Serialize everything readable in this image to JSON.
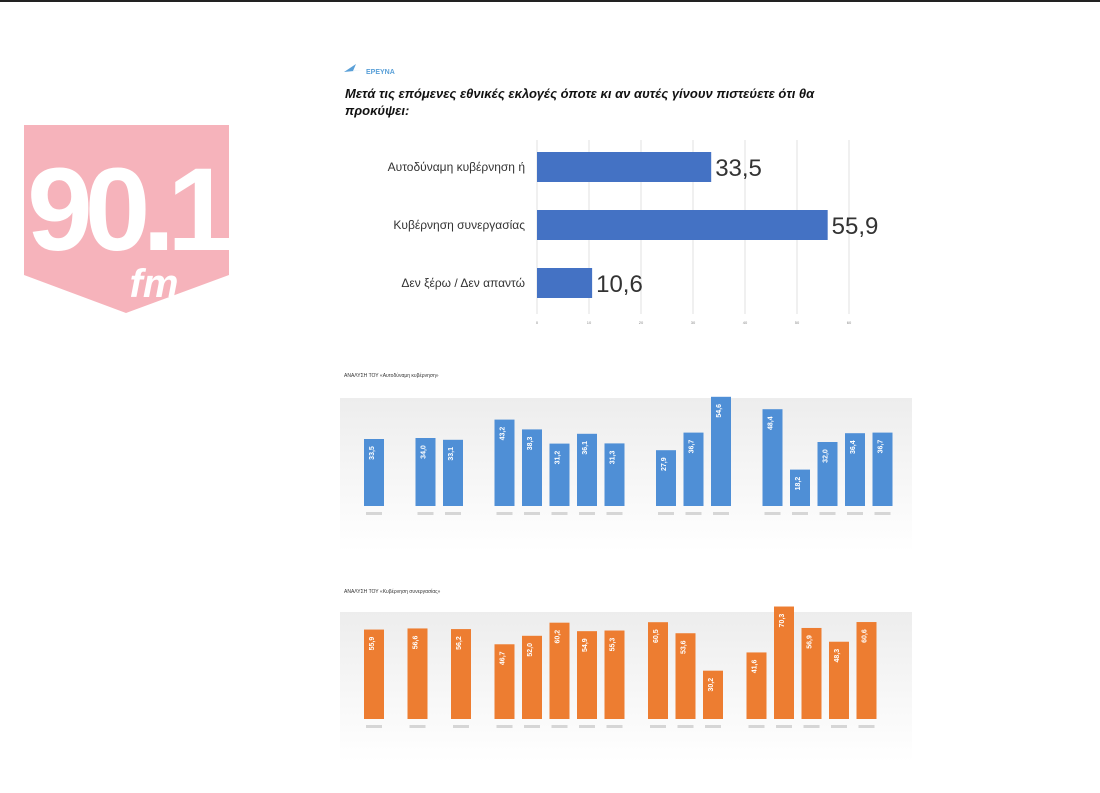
{
  "brand": {
    "logo_text": "90.1",
    "logo_sub": "fm",
    "source_text": "ΕΡΕΥΝΑ"
  },
  "colors": {
    "logo": "#f6b3bb",
    "blue": "#4472c4",
    "blue_light": "#4f8fd6",
    "orange": "#ed7d31"
  },
  "chart_data": [
    {
      "type": "bar",
      "orientation": "horizontal",
      "title": "Μετά τις επόμενες εθνικές εκλογές όποτε κι αν αυτές γίνουν πιστεύετε ότι θα προκύψει:",
      "categories": [
        "Αυτοδύναμη κυβέρνηση ή",
        "Κυβέρνηση συνεργασίας",
        "Δεν ξέρω / Δεν απαντώ"
      ],
      "values": [
        33.5,
        55.9,
        10.6
      ],
      "labels": [
        "33,5",
        "55,9",
        "10,6"
      ],
      "xlim": [
        0,
        60
      ],
      "xticks": [
        0,
        10,
        20,
        30,
        40,
        50,
        60
      ],
      "grid": true
    },
    {
      "type": "bar",
      "title": "ΑΝΑΛΥΣΗ ΤΟΥ «Αυτοδύναμη κυβέρνηση»",
      "groups": [
        {
          "values": [
            33.5
          ],
          "labels": [
            "33,5"
          ]
        },
        {
          "values": [
            34.0,
            33.1
          ],
          "labels": [
            "34,0",
            "33,1"
          ]
        },
        {
          "values": [
            43.2,
            38.3,
            31.2,
            36.1,
            31.3
          ],
          "labels": [
            "43,2",
            "38,3",
            "31,2",
            "36,1",
            "31,3"
          ]
        },
        {
          "values": [
            27.9,
            36.7,
            54.6
          ],
          "labels": [
            "27,9",
            "36,7",
            "54,6"
          ]
        },
        {
          "values": [
            48.4,
            18.2,
            32.0,
            36.4,
            36.7
          ],
          "labels": [
            "48,4",
            "18,2",
            "32,0",
            "36,4",
            "36,7"
          ]
        }
      ],
      "ylim": [
        0,
        60
      ]
    },
    {
      "type": "bar",
      "title": "ΑΝΑΛΥΣΗ ΤΟΥ «Κυβέρνηση συνεργασίας»",
      "groups": [
        {
          "values": [
            55.9
          ],
          "labels": [
            "55,9"
          ]
        },
        {
          "values": [
            56.6
          ],
          "labels": [
            "56,6"
          ]
        },
        {
          "values": [
            56.2
          ],
          "labels": [
            "56,2"
          ]
        },
        {
          "values": [
            46.7,
            52.0,
            60.2,
            54.9,
            55.3
          ],
          "labels": [
            "46,7",
            "52,0",
            "60,2",
            "54,9",
            "55,3"
          ]
        },
        {
          "values": [
            60.5,
            53.6,
            30.2
          ],
          "labels": [
            "60,5",
            "53,6",
            "30,2"
          ]
        },
        {
          "values": [
            41.6,
            70.3,
            56.9,
            48.3,
            60.6
          ],
          "labels": [
            "41,6",
            "70,3",
            "56,9",
            "48,3",
            "60,6"
          ]
        }
      ],
      "ylim": [
        0,
        75
      ]
    }
  ]
}
